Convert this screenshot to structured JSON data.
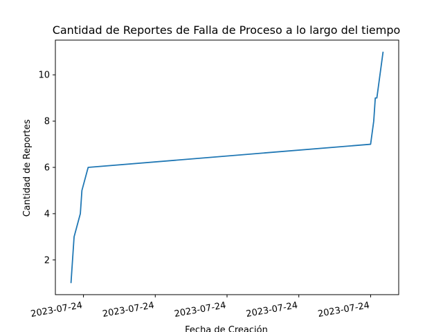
{
  "chart_data": {
    "type": "line",
    "title": "Cantidad de Reportes de Falla de Proceso a lo largo del tiempo",
    "xlabel": "Fecha de Creación",
    "ylabel": "Cantidad de Reportes",
    "x_tick_labels": [
      "2023-07-24",
      "2023-07-24",
      "2023-07-24",
      "2023-07-24",
      "2023-07-24"
    ],
    "x_tick_positions": [
      0.04,
      0.27,
      0.5,
      0.73,
      0.96
    ],
    "x_range": [
      -0.05,
      1.05
    ],
    "x": [
      0.0,
      0.01,
      0.03,
      0.035,
      0.055,
      0.96,
      0.97,
      0.975,
      0.98,
      0.99,
      1.0
    ],
    "series": [
      {
        "values": [
          1,
          3,
          4,
          5,
          6,
          7,
          8,
          9,
          9,
          10,
          11
        ],
        "color": "#1f77b4"
      }
    ],
    "y_ticks": [
      2,
      4,
      6,
      8,
      10
    ],
    "ylim": [
      0.5,
      11.5
    ],
    "grid": false,
    "legend": "none"
  }
}
